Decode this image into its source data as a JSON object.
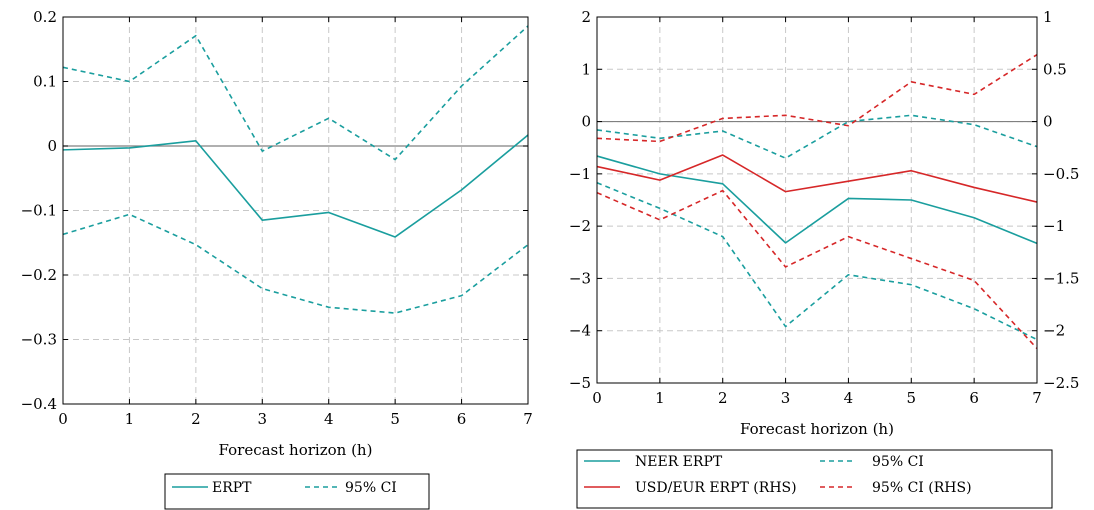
{
  "colors": {
    "teal": "#1a9e9e",
    "red": "#d62728",
    "zero_line": "#808080",
    "grid": "#c8c8c8"
  },
  "chart_data": [
    {
      "type": "line",
      "xlabel": "Forecast horizon (h)",
      "xlim": [
        0,
        7
      ],
      "ylim": [
        -0.4,
        0.2
      ],
      "grid": true,
      "x": [
        0,
        1,
        2,
        3,
        4,
        5,
        6,
        7
      ],
      "x_ticks": [
        "0",
        "1",
        "2",
        "3",
        "4",
        "5",
        "6",
        "7"
      ],
      "y_ticks": [
        "0.2",
        "0.1",
        "0",
        "−0.1",
        "−0.2",
        "−0.3",
        "−0.4"
      ],
      "y_tick_values": [
        0.2,
        0.1,
        0,
        -0.1,
        -0.2,
        -0.3,
        -0.4
      ],
      "legend_position": "bottom",
      "series": [
        {
          "name": "ERPT",
          "color": "teal",
          "style": "solid",
          "values": [
            -0.006,
            -0.003,
            0.008,
            -0.115,
            -0.103,
            -0.141,
            -0.068,
            0.017
          ]
        },
        {
          "name": "95% CI",
          "color": "teal",
          "style": "dashed",
          "values": [
            0.122,
            0.1,
            0.171,
            -0.008,
            0.043,
            -0.021,
            0.093,
            0.186
          ]
        },
        {
          "name": "",
          "color": "teal",
          "style": "dashed",
          "values": [
            -0.137,
            -0.106,
            -0.153,
            -0.221,
            -0.25,
            -0.259,
            -0.232,
            -0.153
          ]
        }
      ]
    },
    {
      "type": "line",
      "xlabel": "Forecast horizon (h)",
      "xlim": [
        0,
        7
      ],
      "ylim": [
        -5,
        2
      ],
      "ylim_right": [
        -2.5,
        1
      ],
      "grid": true,
      "x": [
        0,
        1,
        2,
        3,
        4,
        5,
        6,
        7
      ],
      "x_ticks": [
        "0",
        "1",
        "2",
        "3",
        "4",
        "5",
        "6",
        "7"
      ],
      "y_ticks": [
        "2",
        "1",
        "0",
        "−1",
        "−2",
        "−3",
        "−4",
        "−5"
      ],
      "y_tick_values": [
        2,
        1,
        0,
        -1,
        -2,
        -3,
        -4,
        -5
      ],
      "y_ticks_right": [
        "1",
        "0.5",
        "0",
        "−0.5",
        "−1",
        "−1.5",
        "−2",
        "−2.5"
      ],
      "y_tick_values_right": [
        1,
        0.5,
        0,
        -0.5,
        -1,
        -1.5,
        -2,
        -2.5
      ],
      "legend_position": "bottom",
      "series": [
        {
          "name": "NEER ERPT",
          "color": "teal",
          "style": "solid",
          "axis": "left",
          "values": [
            -0.66,
            -1.0,
            -1.19,
            -2.32,
            -1.47,
            -1.5,
            -1.84,
            -2.33
          ]
        },
        {
          "name": "95% CI",
          "color": "teal",
          "style": "dashed",
          "axis": "left",
          "values": [
            -0.16,
            -0.32,
            -0.18,
            -0.7,
            0.0,
            0.12,
            -0.06,
            -0.48
          ]
        },
        {
          "name": "",
          "color": "teal",
          "style": "dashed",
          "axis": "left",
          "values": [
            -1.17,
            -1.66,
            -2.2,
            -3.92,
            -2.93,
            -3.12,
            -3.58,
            -4.17
          ]
        },
        {
          "name": "USD/EUR ERPT (RHS)",
          "color": "red",
          "style": "solid",
          "axis": "right",
          "values": [
            -0.43,
            -0.56,
            -0.32,
            -0.67,
            -0.57,
            -0.47,
            -0.63,
            -0.77
          ]
        },
        {
          "name": "95% CI (RHS)",
          "color": "red",
          "style": "dashed",
          "axis": "right",
          "values": [
            -0.16,
            -0.19,
            0.03,
            0.06,
            -0.04,
            0.38,
            0.26,
            0.64
          ]
        },
        {
          "name": "",
          "color": "red",
          "style": "dashed",
          "axis": "right",
          "values": [
            -0.68,
            -0.94,
            -0.66,
            -1.39,
            -1.1,
            -1.31,
            -1.52,
            -2.17
          ]
        }
      ]
    }
  ],
  "legends": [
    [
      {
        "label": "ERPT",
        "color": "teal",
        "style": "solid"
      },
      {
        "label": "95% CI",
        "color": "teal",
        "style": "dashed"
      }
    ],
    [
      {
        "label": "NEER ERPT",
        "color": "teal",
        "style": "solid"
      },
      {
        "label": "95% CI",
        "color": "teal",
        "style": "dashed"
      },
      {
        "label": "USD/EUR ERPT (RHS)",
        "color": "red",
        "style": "solid"
      },
      {
        "label": "95% CI (RHS)",
        "color": "red",
        "style": "dashed"
      }
    ]
  ]
}
